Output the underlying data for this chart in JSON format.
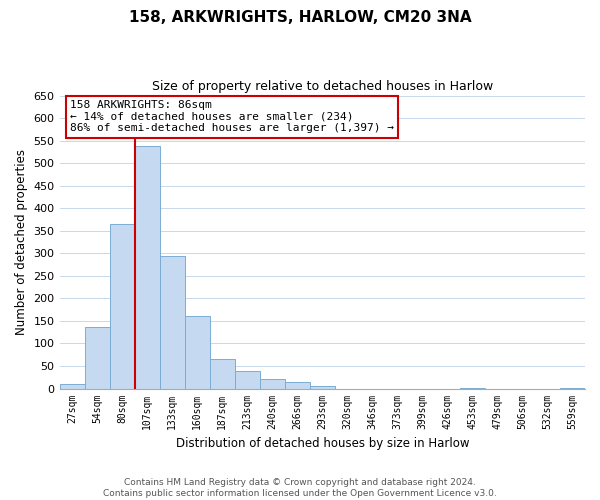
{
  "title": "158, ARKWRIGHTS, HARLOW, CM20 3NA",
  "subtitle": "Size of property relative to detached houses in Harlow",
  "xlabel": "Distribution of detached houses by size in Harlow",
  "ylabel": "Number of detached properties",
  "bar_labels": [
    "27sqm",
    "54sqm",
    "80sqm",
    "107sqm",
    "133sqm",
    "160sqm",
    "187sqm",
    "213sqm",
    "240sqm",
    "266sqm",
    "293sqm",
    "320sqm",
    "346sqm",
    "373sqm",
    "399sqm",
    "426sqm",
    "453sqm",
    "479sqm",
    "506sqm",
    "532sqm",
    "559sqm"
  ],
  "bar_values": [
    10,
    137,
    365,
    537,
    293,
    160,
    65,
    40,
    22,
    14,
    5,
    0,
    0,
    0,
    0,
    0,
    2,
    0,
    0,
    0,
    2
  ],
  "bar_color": "#c5d9f0",
  "bar_edge_color": "#7aadd4",
  "vline_x": 2.5,
  "vline_color": "#cc0000",
  "ylim": [
    0,
    650
  ],
  "yticks": [
    0,
    50,
    100,
    150,
    200,
    250,
    300,
    350,
    400,
    450,
    500,
    550,
    600,
    650
  ],
  "annotation_title": "158 ARKWRIGHTS: 86sqm",
  "annotation_line1": "← 14% of detached houses are smaller (234)",
  "annotation_line2": "86% of semi-detached houses are larger (1,397) →",
  "annotation_box_color": "#ffffff",
  "annotation_box_edge": "#cc0000",
  "footer_line1": "Contains HM Land Registry data © Crown copyright and database right 2024.",
  "footer_line2": "Contains public sector information licensed under the Open Government Licence v3.0.",
  "background_color": "#ffffff",
  "grid_color": "#c8d8ec"
}
